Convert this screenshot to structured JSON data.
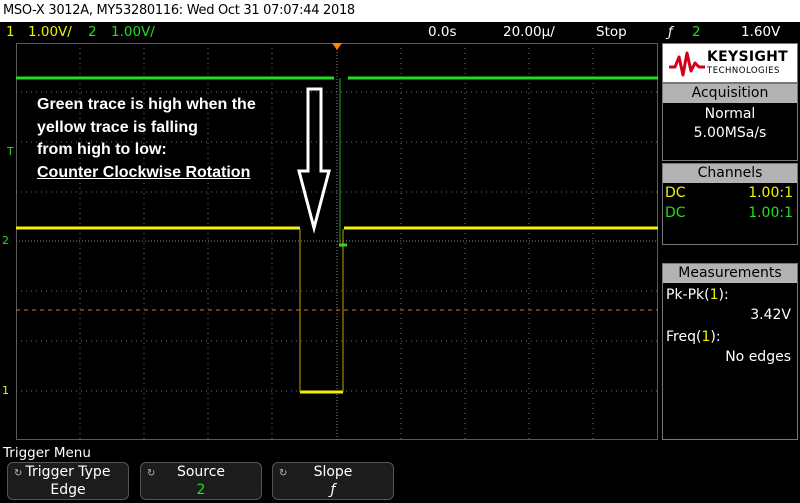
{
  "title_bar": {
    "text": "MSO-X 3012A, MY53280116: Wed Oct 31 07:07:44 2018"
  },
  "status_bar": {
    "ch1_num": "1",
    "ch1_scale": "1.00V/",
    "ch2_num": "2",
    "ch2_scale": "1.00V/",
    "time_delay": "0.0s",
    "time_scale": "20.00µ/",
    "run_state": "Stop",
    "trigger_slope_symbol": "ƒ",
    "trigger_source": "2",
    "trigger_level": "1.60V"
  },
  "annotation": {
    "line1": "Green trace is high when the",
    "line2": "yellow trace is falling",
    "line3": "from high to low:",
    "line4": "Counter Clockwise Rotation"
  },
  "markers": {
    "trigger_level_label": "T",
    "ch2_ground_label": "2",
    "ch1_ground_label": "1"
  },
  "panel": {
    "brand_name": "KEYSIGHT",
    "brand_sub": "TECHNOLOGIES",
    "acquisition": {
      "header": "Acquisition",
      "mode": "Normal",
      "rate": "5.00MSa/s"
    },
    "channels": {
      "header": "Channels",
      "rows": [
        {
          "coupling": "DC",
          "probe": "1.00:1"
        },
        {
          "coupling": "DC",
          "probe": "1.00:1"
        }
      ]
    },
    "measurements": {
      "header": "Measurements",
      "m1_prefix": "Pk-Pk(",
      "m1_ch": "1",
      "m1_suffix": "):",
      "m1_value": "3.42V",
      "m2_prefix": "Freq(",
      "m2_ch": "1",
      "m2_suffix": "):",
      "m2_value": "No edges"
    }
  },
  "softkeys": {
    "menu_label": "Trigger Menu",
    "keys": [
      {
        "label": "Trigger Type",
        "value": "Edge"
      },
      {
        "label": "Source",
        "value": "2"
      },
      {
        "label": "Slope",
        "value": "ƒ"
      }
    ]
  },
  "colors": {
    "ch1": "#f2f200",
    "ch2": "#22dd22",
    "trigger_orange": "#ff8800",
    "grid": "#6e6e6e"
  }
}
